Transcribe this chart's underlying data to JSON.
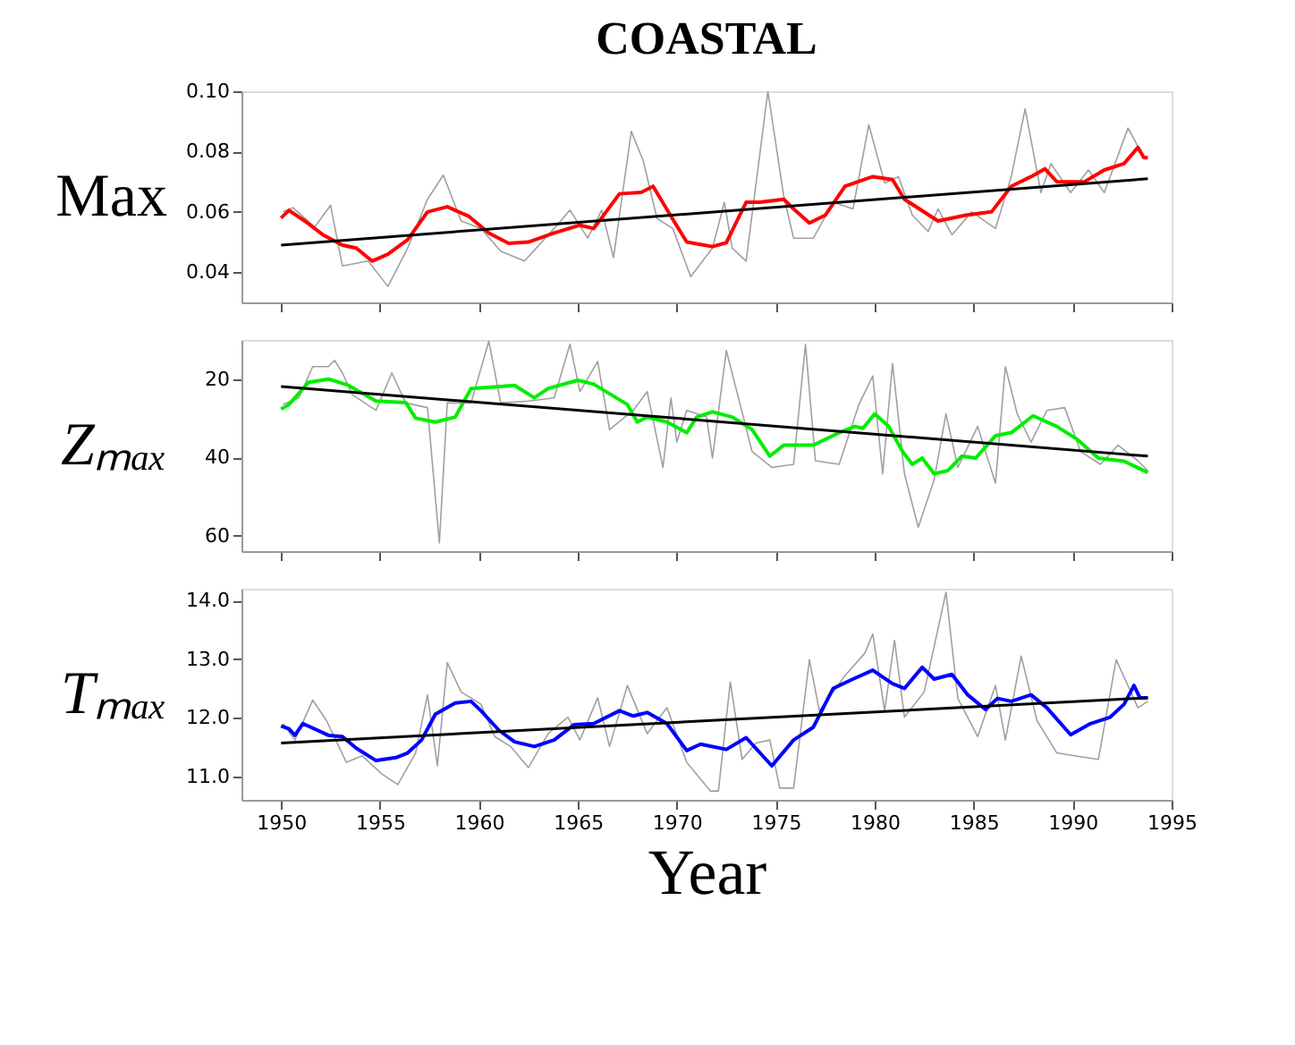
{
  "chart_data": [
    {
      "type": "line",
      "title": "COASTAL",
      "ylabel": "Max",
      "xlim": [
        1948,
        1995
      ],
      "xticks": [
        1950,
        1955,
        1960,
        1965,
        1970,
        1975,
        1980,
        1985,
        1990,
        1995
      ],
      "ylim": [
        0.03,
        0.1
      ],
      "yticks": [
        {
          "value": 0.04,
          "label": "0.04"
        },
        {
          "value": 0.06,
          "label": "0.06"
        },
        {
          "value": 0.08,
          "label": "0.08"
        },
        {
          "value": 0.1,
          "label": "0.10"
        }
      ],
      "tick_labels": "y",
      "grid": false,
      "marker": "none",
      "line_style": "solid",
      "series": [
        {
          "color": "#a0a0a0",
          "x": [
            1950.1,
            1950.6,
            1951.7,
            1952.5,
            1953.1,
            1954.4,
            1955.4,
            1956.4,
            1957.4,
            1958.2,
            1959.1,
            1960.1,
            1961.1,
            1962.3,
            1963.8,
            1964.6,
            1965.5,
            1966.2,
            1966.8,
            1967.7,
            1968.3,
            1969.0,
            1969.8,
            1970.7,
            1971.8,
            1972.4,
            1972.8,
            1973.5,
            1974.6,
            1975.4,
            1975.9,
            1976.9,
            1977.9,
            1978.9,
            1979.7,
            1980.5,
            1981.2,
            1981.9,
            1982.7,
            1983.2,
            1983.9,
            1984.9,
            1986.1,
            1986.9,
            1987.6,
            1988.4,
            1988.9,
            1989.9,
            1990.8,
            1991.6,
            1992.8,
            1993.6
          ],
          "values": [
            0.06,
            0.0614,
            0.055,
            0.0622,
            0.0421,
            0.0437,
            0.0353,
            0.048,
            0.0642,
            0.0722,
            0.057,
            0.0545,
            0.047,
            0.0437,
            0.0545,
            0.0606,
            0.0513,
            0.0606,
            0.0449,
            0.0867,
            0.077,
            0.0578,
            0.0545,
            0.0385,
            0.048,
            0.0632,
            0.048,
            0.0437,
            0.1,
            0.0653,
            0.0513,
            0.0513,
            0.0632,
            0.061,
            0.0889,
            0.0696,
            0.0717,
            0.0589,
            0.0535,
            0.061,
            0.0524,
            0.06,
            0.0545,
            0.0717,
            0.0942,
            0.0664,
            0.076,
            0.0664,
            0.0739,
            0.0664,
            0.0878,
            0.078
          ]
        },
        {
          "color": "#ff0000",
          "x": [
            1950,
            1950.4,
            1951.2,
            1952.1,
            1953.1,
            1953.8,
            1954.6,
            1955.4,
            1956.4,
            1957.4,
            1958.4,
            1959.5,
            1960.5,
            1961.5,
            1962.5,
            1963.8,
            1965.1,
            1965.8,
            1967.1,
            1968.2,
            1968.8,
            1969.8,
            1970.5,
            1971.8,
            1972.5,
            1973.5,
            1974.2,
            1975.4,
            1975.9,
            1976.7,
            1977.5,
            1978.5,
            1979.9,
            1980.9,
            1981.5,
            1983.2,
            1984.6,
            1985.9,
            1986.9,
            1987.9,
            1988.6,
            1989.2,
            1990.6,
            1991.6,
            1992.6,
            1993.3,
            1993.6,
            1993.8
          ],
          "values": [
            0.058,
            0.0605,
            0.057,
            0.0525,
            0.049,
            0.048,
            0.0437,
            0.046,
            0.0508,
            0.06,
            0.0617,
            0.0585,
            0.053,
            0.0496,
            0.05,
            0.053,
            0.0556,
            0.0545,
            0.066,
            0.0665,
            0.0685,
            0.0575,
            0.05,
            0.0485,
            0.0498,
            0.0632,
            0.0632,
            0.0642,
            0.061,
            0.0563,
            0.0589,
            0.0685,
            0.0717,
            0.0707,
            0.0642,
            0.057,
            0.0589,
            0.06,
            0.0685,
            0.0717,
            0.0743,
            0.07,
            0.07,
            0.0739,
            0.076,
            0.0814,
            0.078,
            0.078
          ]
        },
        {
          "color": "#000000",
          "x": [
            1950,
            1993.8
          ],
          "values": [
            0.049,
            0.071
          ]
        }
      ]
    },
    {
      "type": "line",
      "ylabel": "Zₘₐₓ",
      "xlim": [
        1948,
        1995
      ],
      "xticks": [
        1950,
        1955,
        1960,
        1965,
        1970,
        1975,
        1980,
        1985,
        1990,
        1995
      ],
      "ylim": [
        64,
        10
      ],
      "yticks": [
        20,
        40,
        60
      ],
      "tick_labels": "y",
      "grid": false,
      "marker": "none",
      "line_style": "solid",
      "series": [
        {
          "color": "#a0a0a0",
          "x": [
            1950.1,
            1950.9,
            1951.6,
            1952.4,
            1952.7,
            1953.1,
            1953.6,
            1954.8,
            1955.6,
            1956.3,
            1957.4,
            1958,
            1958.4,
            1959.6,
            1960.5,
            1961.1,
            1962.5,
            1963.8,
            1964.6,
            1965.1,
            1966,
            1966.6,
            1967.8,
            1968.5,
            1969.3,
            1969.7,
            1970,
            1970.5,
            1971.5,
            1971.8,
            1972.5,
            1973.2,
            1973.8,
            1974.8,
            1975.9,
            1976.5,
            1977,
            1978.2,
            1979.2,
            1979.9,
            1980.4,
            1980.9,
            1981.5,
            1982.2,
            1983,
            1983.6,
            1984.2,
            1985.2,
            1986.1,
            1986.6,
            1987.2,
            1987.9,
            1988.7,
            1989.6,
            1990.4,
            1991.4,
            1992.3,
            1993.3,
            1993.8
          ],
          "values": [
            26.5,
            24.8,
            16.8,
            16.8,
            15.2,
            18.4,
            24,
            28,
            18.4,
            26.1,
            27.3,
            61.9,
            26.1,
            26.1,
            10.3,
            26.1,
            25.6,
            24.8,
            11.1,
            23.2,
            15.5,
            32.9,
            28,
            23.2,
            42.6,
            24.8,
            36.1,
            28,
            29.7,
            40.2,
            12.7,
            26.5,
            38.5,
            42.6,
            41.8,
            11.1,
            40.9,
            41.8,
            26.5,
            19.2,
            44.2,
            16,
            44.2,
            57.9,
            45.8,
            28.9,
            42.6,
            32.1,
            46.6,
            16.8,
            28.9,
            36.1,
            28,
            27.3,
            38.5,
            41.8,
            36.9,
            40.9,
            43.4
          ]
        },
        {
          "color": "#00ee00",
          "x": [
            1950,
            1950.4,
            1951.4,
            1952.4,
            1953.4,
            1954.8,
            1956.3,
            1956.8,
            1957.8,
            1958.8,
            1959.6,
            1961.1,
            1961.8,
            1962.8,
            1963.5,
            1965,
            1965.8,
            1967.5,
            1968,
            1968.5,
            1969.5,
            1970.5,
            1971,
            1971.8,
            1972.8,
            1973.8,
            1974.7,
            1975.4,
            1976.9,
            1978.2,
            1979,
            1979.4,
            1980,
            1980.7,
            1981.4,
            1981.9,
            1982.4,
            1983,
            1983.7,
            1984.4,
            1985.1,
            1986.1,
            1986.9,
            1988,
            1989.2,
            1990.2,
            1991.3,
            1992.6,
            1993.8
          ],
          "values": [
            27.7,
            26.5,
            20.8,
            20,
            21.6,
            25.6,
            26,
            30,
            31,
            29.7,
            22.4,
            21.9,
            21.6,
            24.8,
            22.4,
            20.3,
            21.3,
            26.5,
            31,
            29.7,
            31,
            33.7,
            29.7,
            28.4,
            29.7,
            32.9,
            39.7,
            36.9,
            36.9,
            33.7,
            32.1,
            32.6,
            28.9,
            32.1,
            38.5,
            41.8,
            40.2,
            44.2,
            43.4,
            39.7,
            40.2,
            34.5,
            33.7,
            29.4,
            32.1,
            35.3,
            40.2,
            41,
            43.9
          ]
        },
        {
          "color": "#000000",
          "x": [
            1950,
            1993.8
          ],
          "values": [
            21.9,
            39.7
          ]
        }
      ]
    },
    {
      "type": "line",
      "ylabel": "Tₘₐₓ",
      "xlabel": "Year",
      "xlim": [
        1948,
        1995
      ],
      "xticks": [
        1950,
        1955,
        1960,
        1965,
        1970,
        1975,
        1980,
        1985,
        1990,
        1995
      ],
      "ylim": [
        10.6,
        14.2
      ],
      "yticks": [
        {
          "value": 11,
          "label": "11.0"
        },
        {
          "value": 12,
          "label": "12.0"
        },
        {
          "value": 13,
          "label": "13.0"
        },
        {
          "value": 14,
          "label": "14.0"
        }
      ],
      "grid": false,
      "marker": "none",
      "line_style": "solid",
      "series": [
        {
          "color": "#a0a0a0",
          "x": [
            1950.1,
            1950.7,
            1951.6,
            1952.3,
            1953.3,
            1954.1,
            1955.1,
            1955.9,
            1956.8,
            1957.4,
            1957.9,
            1958.4,
            1959.1,
            1960.1,
            1960.8,
            1961.6,
            1962.5,
            1963.5,
            1964.5,
            1965.1,
            1966,
            1966.6,
            1967.5,
            1968.5,
            1969.5,
            1970.5,
            1971.7,
            1972.1,
            1972.7,
            1973.3,
            1974,
            1974.7,
            1975.2,
            1975.9,
            1976.7,
            1977.2,
            1978.5,
            1979.5,
            1979.9,
            1980.5,
            1981,
            1981.5,
            1982.5,
            1983.6,
            1984.2,
            1985.2,
            1986.1,
            1986.6,
            1987.4,
            1988.2,
            1989.2,
            1990.1,
            1991.3,
            1992.2,
            1993.3,
            1993.8
          ],
          "values": [
            11.9,
            11.62,
            12.3,
            11.95,
            11.24,
            11.35,
            11.04,
            10.86,
            11.4,
            12.39,
            11.18,
            12.94,
            12.44,
            12.23,
            11.68,
            11.51,
            11.15,
            11.73,
            12.01,
            11.62,
            12.34,
            11.51,
            12.55,
            11.73,
            12.17,
            11.24,
            10.75,
            10.75,
            12.61,
            11.29,
            11.57,
            11.62,
            10.8,
            10.8,
            12.99,
            12.12,
            12.72,
            13.1,
            13.43,
            12.12,
            13.32,
            12.01,
            12.44,
            14.14,
            12.33,
            11.68,
            12.55,
            11.62,
            13.05,
            11.95,
            11.4,
            11.35,
            11.29,
            12.99,
            12.17,
            12.28
          ]
        },
        {
          "color": "#0000ff",
          "x": [
            1950,
            1950.4,
            1950.7,
            1951.1,
            1952.4,
            1953.1,
            1953.8,
            1954.8,
            1955.8,
            1956.4,
            1957.1,
            1957.8,
            1958.8,
            1959.6,
            1960.1,
            1961,
            1961.8,
            1962.8,
            1963.8,
            1964.8,
            1965.8,
            1967.1,
            1967.8,
            1968.5,
            1969.5,
            1970.5,
            1971.2,
            1972.5,
            1973.5,
            1974.8,
            1975.9,
            1976.9,
            1977.9,
            1978.9,
            1979.9,
            1980.9,
            1981.5,
            1982.4,
            1983,
            1983.9,
            1984.7,
            1985.6,
            1986.2,
            1986.9,
            1987.9,
            1988.7,
            1989.9,
            1990.9,
            1991.9,
            1992.6,
            1993.1,
            1993.4,
            1993.8
          ],
          "values": [
            11.86,
            11.81,
            11.7,
            11.9,
            11.7,
            11.68,
            11.48,
            11.27,
            11.32,
            11.4,
            11.62,
            12.06,
            12.25,
            12.28,
            12.12,
            11.79,
            11.59,
            11.51,
            11.62,
            11.88,
            11.9,
            12.12,
            12.03,
            12.09,
            11.9,
            11.44,
            11.55,
            11.46,
            11.66,
            11.18,
            11.62,
            11.84,
            12.5,
            12.66,
            12.81,
            12.58,
            12.5,
            12.86,
            12.66,
            12.74,
            12.39,
            12.14,
            12.33,
            12.28,
            12.39,
            12.17,
            11.71,
            11.9,
            12.01,
            12.23,
            12.55,
            12.34,
            12.34
          ]
        },
        {
          "color": "#000000",
          "x": [
            1950,
            1993.8
          ],
          "values": [
            11.57,
            12.34
          ]
        }
      ]
    }
  ]
}
